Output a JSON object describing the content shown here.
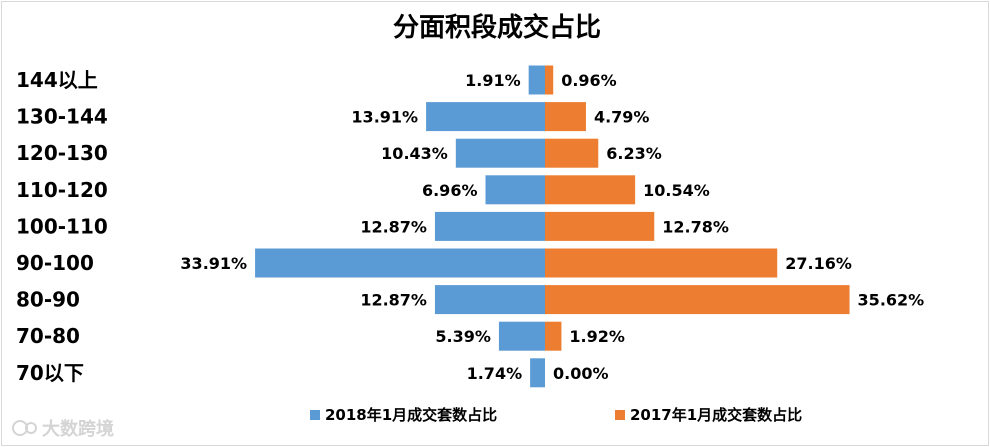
{
  "chart_data": {
    "type": "bar",
    "orientation": "horizontal-diverging",
    "title": "分面积段成交占比",
    "categories": [
      "144以上",
      "130-144",
      "120-130",
      "110-120",
      "100-110",
      "90-100",
      "80-90",
      "70-80",
      "70以下"
    ],
    "series": [
      {
        "name": "2018年1月成交套数占比",
        "color": "#5b9bd5",
        "side": "left",
        "values": [
          1.91,
          13.91,
          10.43,
          6.96,
          12.87,
          33.91,
          12.87,
          5.39,
          1.74
        ],
        "labels": [
          "1.91%",
          "13.91%",
          "10.43%",
          "6.96%",
          "12.87%",
          "33.91%",
          "12.87%",
          "5.39%",
          "1.74%"
        ]
      },
      {
        "name": "2017年1月成交套数占比",
        "color": "#ed7d31",
        "side": "right",
        "values": [
          0.96,
          4.79,
          6.23,
          10.54,
          12.78,
          27.16,
          35.62,
          1.92,
          0.0
        ],
        "labels": [
          "0.96%",
          "4.79%",
          "6.23%",
          "10.54%",
          "12.78%",
          "27.16%",
          "35.62%",
          "1.92%",
          "0.00%"
        ]
      }
    ],
    "legend_position": "bottom",
    "grid": false
  },
  "watermark": "大数跨境"
}
